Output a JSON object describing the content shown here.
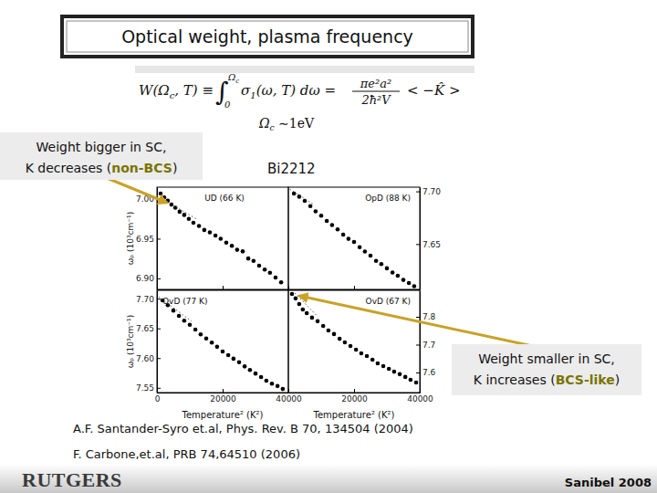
{
  "slide": {
    "title": "Optical weight, plasma frequency",
    "formula": {
      "lhs": "W(Ω",
      "lhs_sub": "c",
      "lhs_end": ", T) ≡",
      "integral": "∫",
      "upper": "Ω",
      "upper_sub": "c",
      "lower": "0",
      "integrand": "σ",
      "integrand_sub": "1",
      "integrand_end": "(ω, T) dω =",
      "numerator": "πe²a²",
      "denominator": "2ħ²V",
      "rhs": "< −K̂ >"
    },
    "omega_note": {
      "symbol": "Ω",
      "sub": "c",
      "text": " ∼1eV"
    },
    "material": "Bi2212",
    "note_left": {
      "line1": "Weight bigger in SC,",
      "line2_before": "K decreases (",
      "line2_em": "non-BCS",
      "line2_after": ")"
    },
    "note_right": {
      "line1": "Weight smaller in SC,",
      "line2_before": "K increases (",
      "line2_em": "BCS-like",
      "line2_after": ")"
    },
    "references": [
      "A.F. Santander-Syro et.al, Phys. Rev. B 70, 134504 (2004)",
      "F. Carbone,et.al, PRB 74,64510 (2006)"
    ],
    "footer": {
      "logo": "RUTGERS",
      "event": "Sanibel 2008"
    }
  },
  "chart_data": [
    {
      "type": "scatter",
      "title": "UD (66 K)",
      "ylabel": "ωₚ (10³cm⁻¹)",
      "x": [
        1100,
        2200,
        3300,
        4400,
        5600,
        6900,
        8300,
        9700,
        11100,
        12800,
        14400,
        16100,
        17800,
        19400,
        21100,
        22800,
        24400,
        26100,
        27800,
        29400,
        31100,
        32800,
        34400,
        36100,
        37800
      ],
      "series": [
        {
          "color": "#000000",
          "marker": "circle",
          "values": [
            7.007,
            7.002,
            6.998,
            6.993,
            6.989,
            6.984,
            6.98,
            6.975,
            6.97,
            6.966,
            6.961,
            6.958,
            6.954,
            6.95,
            6.945,
            6.941,
            6.936,
            6.934,
            6.925,
            6.922,
            6.916,
            6.911,
            6.907,
            6.901,
            6.895
          ]
        },
        {
          "type": "line",
          "line_style": "dotted",
          "color": "#555555",
          "x": [
            0,
            12000
          ],
          "values": [
            7.004,
            6.975
          ]
        }
      ],
      "xlim": [
        0,
        40000
      ],
      "xticks": [
        0,
        20000,
        40000
      ],
      "ylim": [
        6.886,
        7.015
      ],
      "yticks": [
        {
          "value": 6.9,
          "label": "6.90"
        },
        {
          "value": 6.95,
          "label": "6.95"
        },
        {
          "value": 7.0,
          "label": "7.00"
        }
      ],
      "tick_labels": "y"
    },
    {
      "type": "scatter",
      "title": "OpD (88 K)",
      "x": [
        1700,
        3300,
        5000,
        6700,
        8300,
        10000,
        11700,
        13300,
        15000,
        16700,
        18300,
        20000,
        21700,
        23300,
        25000,
        26700,
        28300,
        30000,
        31700,
        33300,
        35000,
        36700,
        38300
      ],
      "series": [
        {
          "axis": "y2",
          "color": "#000000",
          "marker": "circle",
          "values": [
            7.698,
            7.695,
            7.691,
            7.686,
            7.681,
            7.677,
            7.672,
            7.668,
            7.664,
            7.659,
            7.655,
            7.652,
            7.647,
            7.643,
            7.639,
            7.634,
            7.631,
            7.627,
            7.623,
            7.62,
            7.616,
            7.613,
            7.61
          ]
        },
        {
          "axis": "y2",
          "type": "line",
          "line_style": "dotted",
          "color": "#555555",
          "x": [
            500,
            8000
          ],
          "values": [
            7.702,
            7.687
          ]
        }
      ],
      "xlim": [
        0,
        40000
      ],
      "xticks": [
        0,
        20000,
        40000
      ],
      "y2lim": [
        7.607,
        7.704
      ],
      "y2ticks": [
        {
          "value": 7.65,
          "label": "7.65"
        },
        {
          "value": 7.7,
          "label": "7.70"
        }
      ],
      "tick_labels": "y"
    },
    {
      "type": "scatter",
      "title": "OvD (77 K)",
      "ylabel": "ωₚ (10³cm⁻¹)",
      "xlabel": "Temperature² (K²)",
      "x": [
        1700,
        3300,
        5000,
        6700,
        8300,
        10000,
        11700,
        13300,
        15000,
        16700,
        18300,
        20000,
        21700,
        23300,
        25000,
        26700,
        28300,
        30000,
        31700,
        33300,
        35000,
        36700,
        38300
      ],
      "series": [
        {
          "color": "#000000",
          "marker": "circle",
          "values": [
            7.697,
            7.689,
            7.68,
            7.671,
            7.663,
            7.656,
            7.648,
            7.64,
            7.633,
            7.626,
            7.619,
            7.611,
            7.605,
            7.599,
            7.593,
            7.586,
            7.58,
            7.574,
            7.568,
            7.562,
            7.557,
            7.553,
            7.548
          ]
        },
        {
          "type": "line",
          "line_style": "dotted",
          "color": "#555555",
          "x": [
            500,
            10500
          ],
          "values": [
            7.703,
            7.662
          ]
        }
      ],
      "xlim": [
        0,
        40000
      ],
      "xticks": [
        0,
        20000,
        40000
      ],
      "ylim": [
        7.542,
        7.714
      ],
      "yticks": [
        {
          "value": 7.55,
          "label": "7.55"
        },
        {
          "value": 7.6,
          "label": "7.60"
        },
        {
          "value": 7.65,
          "label": "7.65"
        },
        {
          "value": 7.7,
          "label": "7.70"
        }
      ],
      "tick_labels": true
    },
    {
      "type": "scatter",
      "title": "OvD (67 K)",
      "xlabel": "Temperature² (K²)",
      "x": [
        1100,
        2200,
        3300,
        4400,
        5600,
        7200,
        8900,
        10600,
        12200,
        13900,
        15600,
        17200,
        18900,
        20600,
        22200,
        23900,
        25600,
        27200,
        28900,
        30600,
        32200,
        33900,
        35600,
        37200,
        38900
      ],
      "series": [
        {
          "axis": "y2",
          "color": "#000000",
          "marker": "circle",
          "values": [
            7.882,
            7.866,
            7.846,
            7.826,
            7.813,
            7.797,
            7.784,
            7.767,
            7.751,
            7.738,
            7.721,
            7.708,
            7.695,
            7.682,
            7.669,
            7.659,
            7.646,
            7.633,
            7.623,
            7.613,
            7.603,
            7.594,
            7.584,
            7.574,
            7.564
          ]
        },
        {
          "axis": "y2",
          "type": "line",
          "line_style": "dotted",
          "color": "#555555",
          "x": [
            2000,
            9000
          ],
          "values": [
            7.885,
            7.8
          ]
        }
      ],
      "xlim": [
        0,
        40000
      ],
      "xticks": [
        20000,
        40000
      ],
      "y2lim": [
        7.528,
        7.895
      ],
      "y2ticks": [
        {
          "value": 7.6,
          "label": "7.6"
        },
        {
          "value": 7.7,
          "label": "7.7"
        },
        {
          "value": 7.8,
          "label": "7.8"
        }
      ],
      "tick_labels": true
    }
  ]
}
